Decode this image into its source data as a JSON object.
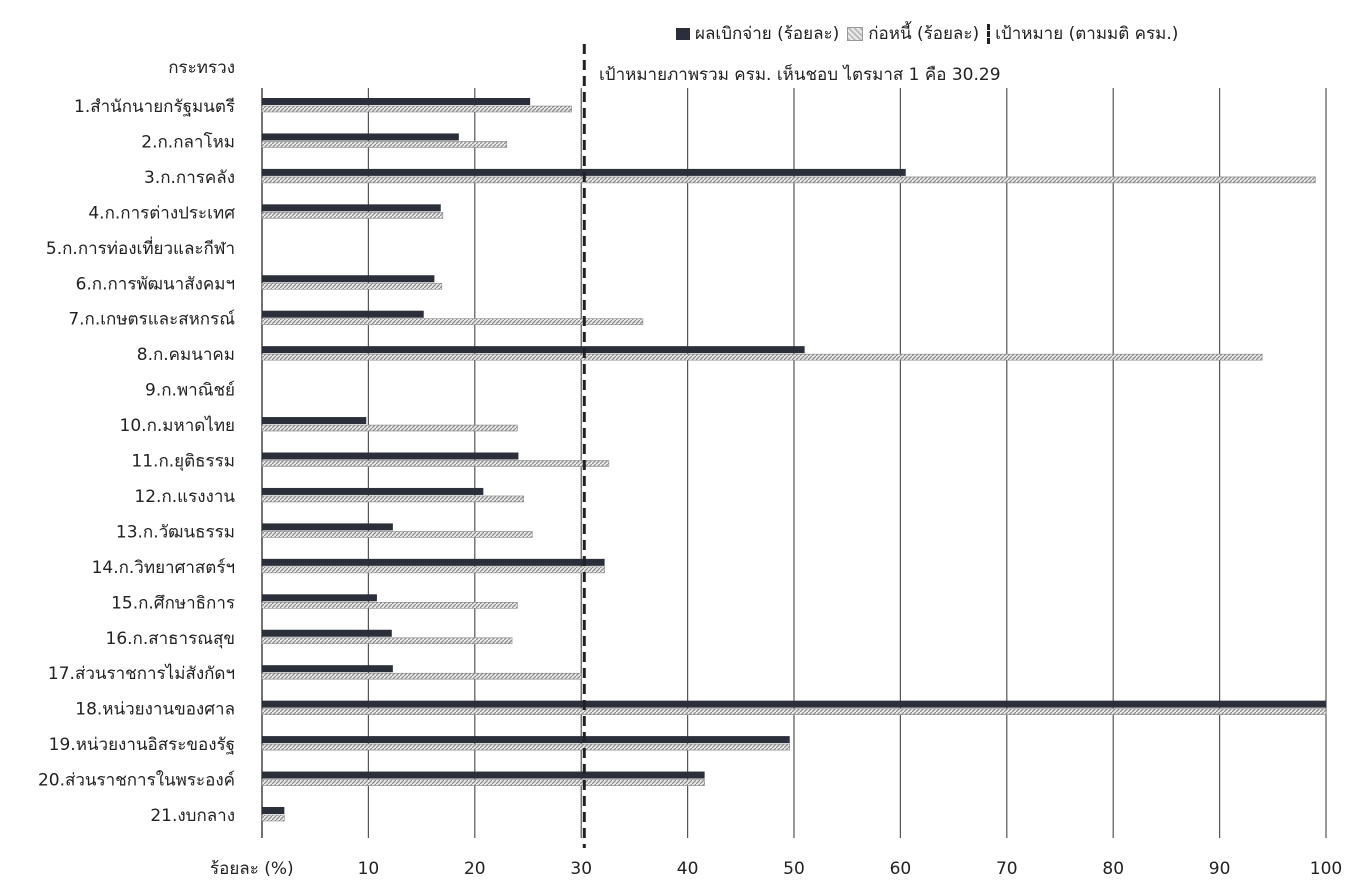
{
  "chart_data": {
    "type": "bar",
    "orientation": "horizontal",
    "category_header": "กระทรวง",
    "xlabel": "ร้อยละ (%)",
    "xlim": [
      0,
      100
    ],
    "xticks": [
      10,
      20,
      30,
      40,
      50,
      60,
      70,
      80,
      90,
      100
    ],
    "grid": true,
    "legend_position": "top-right",
    "categories": [
      "1.สำนักนายกรัฐมนตรี",
      "2.ก.กลาโหม",
      "3.ก.การคลัง",
      "4.ก.การต่างประเทศ",
      "5.ก.การท่องเที่ยวและกีฬา",
      "6.ก.การพัฒนาสังคมฯ",
      "7.ก.เกษตรและสหกรณ์",
      "8.ก.คมนาคม",
      "9.ก.พาณิชย์",
      "10.ก.มหาดไทย",
      "11.ก.ยุติธรรม",
      "12.ก.แรงงาน",
      "13.ก.วัฒนธรรม",
      "14.ก.วิทยาศาสตร์ฯ",
      "15.ก.ศึกษาธิการ",
      "16.ก.สาธารณสุข",
      "17.ส่วนราชการไม่สังกัดฯ",
      "18.หน่วยงานของศาล",
      "19.หน่วยงานอิสระของรัฐ",
      "20.ส่วนราชการในพระองค์",
      "21.งบกลาง"
    ],
    "series": [
      {
        "name": "ผลเบิกจ่าย (ร้อยละ)",
        "color": "#2b2f3a",
        "values": [
          25.2,
          18.5,
          60.5,
          16.8,
          null,
          16.2,
          15.2,
          51.0,
          null,
          9.8,
          24.1,
          20.8,
          12.3,
          32.2,
          10.8,
          12.2,
          12.3,
          100.0,
          49.6,
          41.6,
          2.1
        ]
      },
      {
        "name": "ก่อหนี้ (ร้อยละ)",
        "color": "#c8c8c8",
        "values": [
          29.1,
          23.0,
          99.0,
          17.0,
          null,
          16.9,
          35.8,
          94.0,
          null,
          24.0,
          32.6,
          24.6,
          25.4,
          32.2,
          24.0,
          23.5,
          30.0,
          100.0,
          49.6,
          41.6,
          2.1
        ]
      }
    ],
    "target": {
      "value": 30.29,
      "legend_label": "เป้าหมาย (ตามมติ ครม.)",
      "annotation": "เป้าหมายภาพรวม ครม. เห็นชอบ ไตรมาส 1 คือ 30.29"
    }
  }
}
